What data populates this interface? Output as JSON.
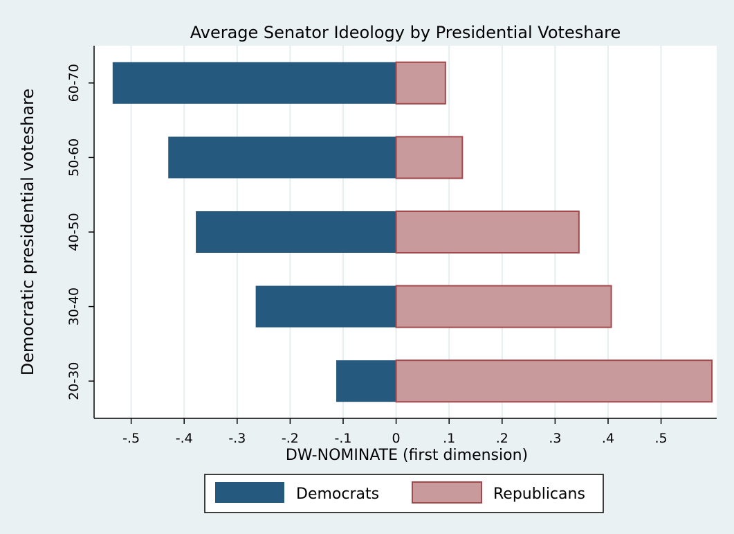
{
  "chart_data": {
    "type": "bar",
    "orientation": "horizontal",
    "title": "Average Senator Ideology by Presidential Voteshare",
    "xlabel": "DW-NOMINATE (first dimension)",
    "ylabel": "Democratic presidential voteshare",
    "categories": [
      "60-70",
      "50-60",
      "40-50",
      "30-40",
      "20-30"
    ],
    "series": [
      {
        "name": "Democrats",
        "color": "#255a7e",
        "values": [
          -0.535,
          -0.43,
          -0.378,
          -0.265,
          -0.113
        ]
      },
      {
        "name": "Republicans",
        "color": "#c99a9b",
        "stroke": "#a4484c",
        "values": [
          0.093,
          0.125,
          0.345,
          0.406,
          0.596
        ]
      }
    ],
    "xlim": [
      -0.57,
      0.605
    ],
    "xticks": [
      {
        "value": -0.5,
        "label": "-.5"
      },
      {
        "value": -0.4,
        "label": "-.4"
      },
      {
        "value": -0.3,
        "label": "-.3"
      },
      {
        "value": -0.2,
        "label": "-.2"
      },
      {
        "value": -0.1,
        "label": "-.1"
      },
      {
        "value": 0,
        "label": "0"
      },
      {
        "value": 0.1,
        "label": ".1"
      },
      {
        "value": 0.2,
        "label": ".2"
      },
      {
        "value": 0.3,
        "label": ".3"
      },
      {
        "value": 0.4,
        "label": ".4"
      },
      {
        "value": 0.5,
        "label": ".5"
      }
    ],
    "grid": true,
    "legend_position": "bottom"
  }
}
